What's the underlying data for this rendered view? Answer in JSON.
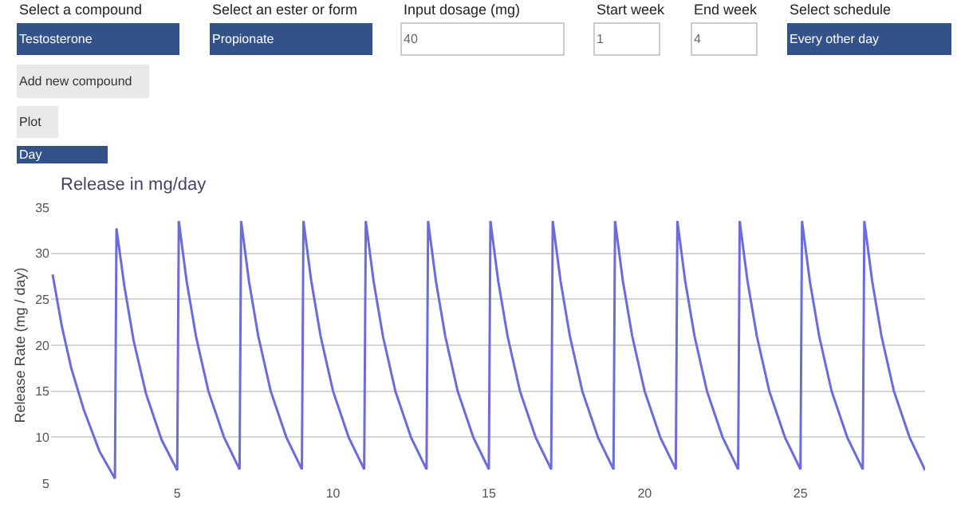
{
  "chart_data": {
    "type": "line",
    "title": "Release in mg/day",
    "ylabel": "Release Rate (mg / day)",
    "annotations": [
      "Select a compound",
      "Testosterone",
      "Select an ester or form",
      "Propionate",
      "Input dosage (mg)",
      "40",
      "Start week",
      "1",
      "End week",
      "4",
      "Select schedule",
      "Every other day",
      "Add new compound",
      "Plot",
      "Day"
    ],
    "x": [
      1,
      1.3,
      1.6,
      2,
      2.5,
      3,
      3.05,
      3.3,
      3.6,
      4,
      4.5,
      5,
      5.05,
      5.3,
      5.6,
      6,
      6.5,
      7,
      7.05,
      7.3,
      7.6,
      8,
      8.5,
      9,
      9.05,
      9.3,
      9.6,
      10,
      10.5,
      11,
      11.05,
      11.3,
      11.6,
      12,
      12.5,
      13,
      13.05,
      13.3,
      13.6,
      14,
      14.5,
      15,
      15.05,
      15.3,
      15.6,
      16,
      16.5,
      17,
      17.05,
      17.3,
      17.6,
      18,
      18.5,
      19,
      19.05,
      19.3,
      19.6,
      20,
      20.5,
      21,
      21.05,
      21.3,
      21.6,
      22,
      22.5,
      23,
      23.05,
      23.3,
      23.6,
      24,
      24.5,
      25,
      25.05,
      25.3,
      25.6,
      26,
      26.5,
      27,
      27.05,
      27.3,
      27.6,
      28,
      28.5,
      29
    ],
    "series": [
      {
        "color": "#6b6bdb",
        "values": [
          27.7,
          22,
          17.5,
          13,
          8.5,
          5.5,
          32.7,
          26.5,
          20.5,
          14.7,
          9.7,
          6.4,
          33.5,
          27,
          21,
          15,
          10,
          6.5,
          33.5,
          27,
          21,
          15,
          10,
          6.5,
          33.5,
          27,
          21,
          15,
          10,
          6.5,
          33.5,
          27,
          21,
          15,
          10,
          6.5,
          33.5,
          27,
          21,
          15,
          10,
          6.5,
          33.5,
          27,
          21,
          15,
          10,
          6.5,
          33.5,
          27,
          21,
          15,
          10,
          6.5,
          33.5,
          27,
          21,
          15,
          10,
          6.5,
          33.5,
          27,
          21,
          15,
          10,
          6.5,
          33.5,
          27,
          21,
          15,
          10,
          6.5,
          33.5,
          27,
          21,
          15,
          10,
          6.5,
          33.5,
          27,
          21,
          15,
          10,
          6.4
        ]
      }
    ],
    "xlim": [
      0.95,
      29
    ],
    "ylim": [
      5,
      35
    ],
    "xticks": [
      5,
      10,
      15,
      20,
      25
    ],
    "yticks": [
      5,
      10,
      15,
      20,
      25,
      30,
      35
    ],
    "grid": "y",
    "marker": "none",
    "line_style": "solid"
  }
}
